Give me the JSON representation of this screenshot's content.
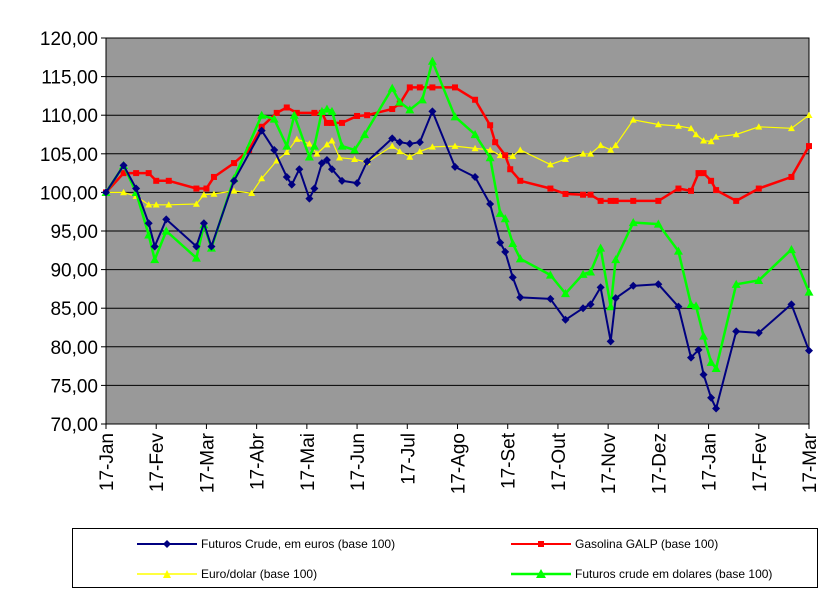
{
  "chart_data": {
    "type": "line",
    "title": "",
    "xlabel": "",
    "ylabel": "",
    "ylim": [
      70,
      120
    ],
    "yticks": [
      "70,00",
      "75,00",
      "80,00",
      "85,00",
      "90,00",
      "95,00",
      "100,00",
      "105,00",
      "110,00",
      "115,00",
      "120,00"
    ],
    "xticks": [
      "17-Jan",
      "17-Fev",
      "17-Mar",
      "17-Abr",
      "17-Mai",
      "17-Jun",
      "17-Jul",
      "17-Ago",
      "17-Set",
      "17-Out",
      "17-Nov",
      "17-Dez",
      "17-Jan",
      "17-Fev",
      "17-Mar"
    ],
    "grid": true,
    "legend_position": "bottom",
    "series": [
      {
        "name": "Futuros Crude,  em euros (base 100)",
        "color": "#000080",
        "marker": "diamond",
        "points": [
          [
            0,
            100
          ],
          [
            0.35,
            103.5
          ],
          [
            0.6,
            100.5
          ],
          [
            0.85,
            96
          ],
          [
            0.97,
            93
          ],
          [
            1.2,
            96.5
          ],
          [
            1.8,
            93
          ],
          [
            1.95,
            96
          ],
          [
            2.1,
            93
          ],
          [
            2.55,
            101.5
          ],
          [
            3.1,
            108
          ],
          [
            3.35,
            105.5
          ],
          [
            3.6,
            102
          ],
          [
            3.7,
            101
          ],
          [
            3.85,
            103
          ],
          [
            4.05,
            99.2
          ],
          [
            4.15,
            100.5
          ],
          [
            4.3,
            103.8
          ],
          [
            4.4,
            104.2
          ],
          [
            4.5,
            103
          ],
          [
            4.7,
            101.5
          ],
          [
            5.0,
            101.2
          ],
          [
            5.2,
            104
          ],
          [
            5.7,
            107
          ],
          [
            5.85,
            106.5
          ],
          [
            6.05,
            106.3
          ],
          [
            6.25,
            106.5
          ],
          [
            6.5,
            110.5
          ],
          [
            6.95,
            103.3
          ],
          [
            7.35,
            102
          ],
          [
            7.65,
            98.5
          ],
          [
            7.85,
            93.5
          ],
          [
            7.95,
            92.3
          ],
          [
            8.1,
            89
          ],
          [
            8.25,
            86.4
          ],
          [
            8.85,
            86.2
          ],
          [
            9.15,
            83.5
          ],
          [
            9.5,
            85
          ],
          [
            9.65,
            85.5
          ],
          [
            9.85,
            87.7
          ],
          [
            10.05,
            80.7
          ],
          [
            10.15,
            86.3
          ],
          [
            10.5,
            87.9
          ],
          [
            11.0,
            88.1
          ],
          [
            11.4,
            85.2
          ],
          [
            11.65,
            78.6
          ],
          [
            11.8,
            79.6
          ],
          [
            11.9,
            76.4
          ],
          [
            12.05,
            73.4
          ],
          [
            12.15,
            72
          ],
          [
            12.55,
            82
          ],
          [
            13.0,
            81.8
          ],
          [
            13.65,
            85.5
          ],
          [
            14.0,
            79.5
          ]
        ]
      },
      {
        "name": "Gasolina GALP  (base 100)",
        "color": "#ff0000",
        "marker": "square",
        "points": [
          [
            0,
            100
          ],
          [
            0.35,
            102.5
          ],
          [
            0.6,
            102.5
          ],
          [
            0.85,
            102.5
          ],
          [
            1.0,
            101.5
          ],
          [
            1.25,
            101.5
          ],
          [
            1.8,
            100.5
          ],
          [
            2.0,
            100.5
          ],
          [
            2.15,
            102
          ],
          [
            2.55,
            103.8
          ],
          [
            2.85,
            105.5
          ],
          [
            3.1,
            108.5
          ],
          [
            3.4,
            110.3
          ],
          [
            3.6,
            111
          ],
          [
            3.8,
            110.3
          ],
          [
            4.15,
            110.3
          ],
          [
            4.3,
            110.3
          ],
          [
            4.4,
            109
          ],
          [
            4.5,
            109
          ],
          [
            4.7,
            109
          ],
          [
            5.0,
            109.9
          ],
          [
            5.2,
            110
          ],
          [
            5.7,
            110.8
          ],
          [
            5.85,
            111.5
          ],
          [
            6.05,
            113.6
          ],
          [
            6.25,
            113.6
          ],
          [
            6.5,
            113.6
          ],
          [
            6.95,
            113.6
          ],
          [
            7.35,
            112
          ],
          [
            7.65,
            108.7
          ],
          [
            7.75,
            106.5
          ],
          [
            7.95,
            104.8
          ],
          [
            8.05,
            103
          ],
          [
            8.25,
            101.5
          ],
          [
            8.85,
            100.5
          ],
          [
            9.15,
            99.8
          ],
          [
            9.5,
            99.7
          ],
          [
            9.65,
            99.7
          ],
          [
            9.85,
            98.9
          ],
          [
            10.05,
            98.9
          ],
          [
            10.15,
            98.9
          ],
          [
            10.5,
            98.9
          ],
          [
            11.0,
            98.9
          ],
          [
            11.4,
            100.5
          ],
          [
            11.65,
            100.2
          ],
          [
            11.8,
            102.5
          ],
          [
            11.9,
            102.5
          ],
          [
            12.05,
            101.5
          ],
          [
            12.15,
            100.3
          ],
          [
            12.55,
            98.9
          ],
          [
            13.0,
            100.5
          ],
          [
            13.65,
            102
          ],
          [
            14.0,
            106
          ]
        ]
      },
      {
        "name": "Euro/dolar (base 100)",
        "color": "#ffff00",
        "marker": "triangle",
        "points": [
          [
            0,
            100
          ],
          [
            0.35,
            100
          ],
          [
            0.6,
            99.5
          ],
          [
            0.85,
            98.4
          ],
          [
            1.0,
            98.4
          ],
          [
            1.25,
            98.4
          ],
          [
            1.8,
            98.5
          ],
          [
            1.95,
            99.7
          ],
          [
            2.15,
            99.8
          ],
          [
            2.55,
            100.2
          ],
          [
            2.9,
            99.9
          ],
          [
            3.1,
            101.8
          ],
          [
            3.4,
            104.1
          ],
          [
            3.6,
            105.2
          ],
          [
            3.8,
            106.9
          ],
          [
            4.05,
            106.3
          ],
          [
            4.2,
            105
          ],
          [
            4.4,
            106.2
          ],
          [
            4.5,
            106.7
          ],
          [
            4.65,
            104.5
          ],
          [
            4.95,
            104.3
          ],
          [
            5.2,
            103.9
          ],
          [
            5.7,
            106
          ],
          [
            5.85,
            105.3
          ],
          [
            6.05,
            104.6
          ],
          [
            6.25,
            105.3
          ],
          [
            6.5,
            105.9
          ],
          [
            6.95,
            106
          ],
          [
            7.35,
            105.7
          ],
          [
            7.65,
            105.5
          ],
          [
            7.85,
            104.8
          ],
          [
            7.95,
            104.7
          ],
          [
            8.1,
            104.7
          ],
          [
            8.25,
            105.5
          ],
          [
            8.85,
            103.6
          ],
          [
            9.15,
            104.3
          ],
          [
            9.5,
            105
          ],
          [
            9.65,
            105
          ],
          [
            9.85,
            106.1
          ],
          [
            10.05,
            105.5
          ],
          [
            10.15,
            106.1
          ],
          [
            10.5,
            109.4
          ],
          [
            11.0,
            108.8
          ],
          [
            11.4,
            108.6
          ],
          [
            11.65,
            108.3
          ],
          [
            11.75,
            107.5
          ],
          [
            11.9,
            106.7
          ],
          [
            12.05,
            106.6
          ],
          [
            12.15,
            107.2
          ],
          [
            12.55,
            107.5
          ],
          [
            13.0,
            108.5
          ],
          [
            13.65,
            108.3
          ],
          [
            14.0,
            110
          ]
        ]
      },
      {
        "name": "Futuros crude em dolares (base 100)",
        "color": "#00ff00",
        "marker": "triangle",
        "points": [
          [
            0,
            100
          ],
          [
            0.35,
            103.5
          ],
          [
            0.6,
            100
          ],
          [
            0.85,
            94.5
          ],
          [
            0.97,
            91.3
          ],
          [
            1.2,
            95
          ],
          [
            1.8,
            91.5
          ],
          [
            1.95,
            95.8
          ],
          [
            2.1,
            92.8
          ],
          [
            2.55,
            101.8
          ],
          [
            3.1,
            110
          ],
          [
            3.35,
            109.5
          ],
          [
            3.6,
            106
          ],
          [
            3.75,
            110
          ],
          [
            4.05,
            104.6
          ],
          [
            4.15,
            106
          ],
          [
            4.3,
            110.5
          ],
          [
            4.4,
            110.8
          ],
          [
            4.5,
            110.5
          ],
          [
            4.7,
            106
          ],
          [
            4.95,
            105.5
          ],
          [
            5.15,
            107.5
          ],
          [
            5.7,
            113.5
          ],
          [
            5.85,
            111.7
          ],
          [
            6.05,
            110.7
          ],
          [
            6.3,
            112
          ],
          [
            6.5,
            117
          ],
          [
            6.95,
            109.8
          ],
          [
            7.35,
            107.5
          ],
          [
            7.65,
            104.5
          ],
          [
            7.85,
            97.3
          ],
          [
            7.95,
            96.6
          ],
          [
            8.1,
            93.4
          ],
          [
            8.25,
            91.4
          ],
          [
            8.85,
            89.3
          ],
          [
            9.15,
            86.9
          ],
          [
            9.5,
            89.4
          ],
          [
            9.65,
            89.7
          ],
          [
            9.85,
            92.8
          ],
          [
            10.05,
            85.2
          ],
          [
            10.15,
            91.3
          ],
          [
            10.5,
            96.1
          ],
          [
            11.0,
            95.9
          ],
          [
            11.4,
            92.4
          ],
          [
            11.65,
            85.5
          ],
          [
            11.75,
            85.3
          ],
          [
            11.9,
            81.4
          ],
          [
            12.05,
            78
          ],
          [
            12.15,
            77.2
          ],
          [
            12.55,
            88.1
          ],
          [
            13.0,
            88.6
          ],
          [
            13.65,
            92.6
          ],
          [
            14.0,
            87.1
          ]
        ]
      }
    ]
  }
}
